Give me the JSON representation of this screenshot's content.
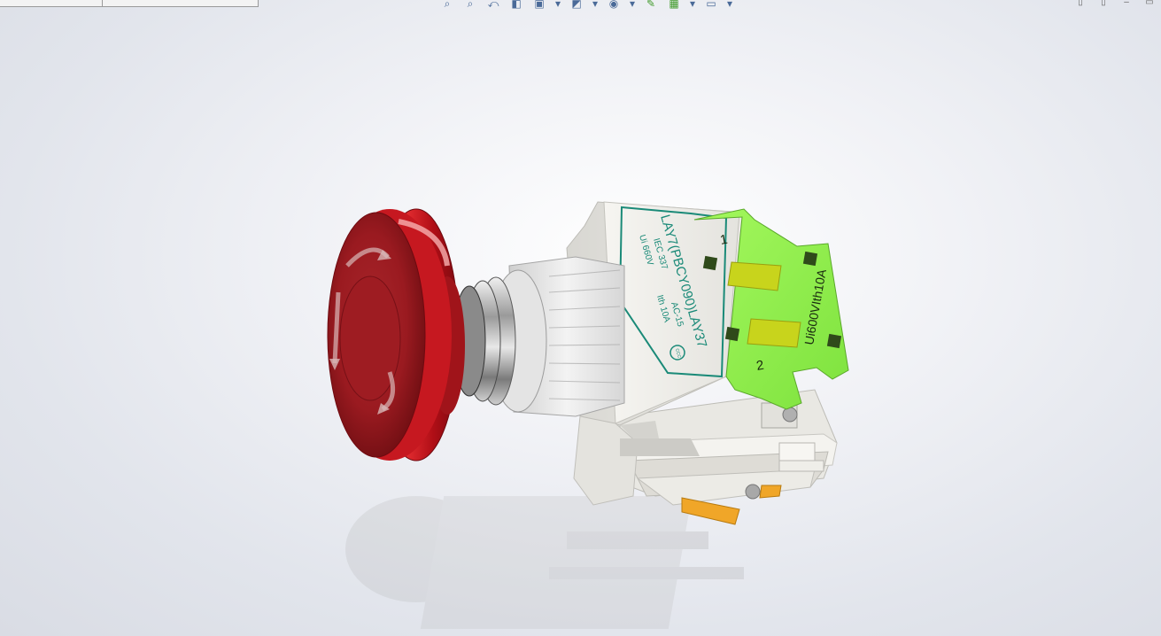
{
  "window": {
    "controls": [
      "restore-icon",
      "tile-icon",
      "minimize-icon",
      "maximize-icon"
    ]
  },
  "feature_manager": {
    "tabs": [
      {
        "label": "",
        "icon": "feature-tree-tab"
      },
      {
        "label": "",
        "icon": "property-manager-tab"
      }
    ]
  },
  "heads_up_toolbar": {
    "buttons": [
      {
        "icon": "zoom-to-fit-icon"
      },
      {
        "icon": "zoom-to-area-icon"
      },
      {
        "icon": "previous-view-icon"
      },
      {
        "icon": "section-view-icon"
      },
      {
        "icon": "view-orientation-icon",
        "dropdown": true
      },
      {
        "icon": "display-style-icon",
        "dropdown": true
      },
      {
        "icon": "hide-show-items-icon",
        "dropdown": true
      },
      {
        "icon": "edit-appearance-icon",
        "dropdown": true
      },
      {
        "icon": "apply-scene-icon",
        "dropdown": true
      },
      {
        "icon": "view-settings-icon",
        "dropdown": true
      }
    ]
  },
  "model": {
    "name": "emergency-stop-push-button",
    "body_label_line1": "LAY7(PBCY090)LAY37",
    "body_label_line2a": "IEC 337",
    "body_label_line2b": "AC-15",
    "body_label_line3a": "Ui 660V",
    "body_label_line3b": "Ith 10A",
    "body_cert_mark": "CCC",
    "contact_block_label": "Ui600VIth10A",
    "terminal_1": "1",
    "terminal_2": "2",
    "colors": {
      "cap_red": "#b3101a",
      "contact_block_green": "#8cf24a",
      "body_white": "#ecebe6",
      "label_teal": "#1a8a78",
      "terminal_yellow": "#c8d41c",
      "terminal_orange": "#f0a628"
    }
  }
}
